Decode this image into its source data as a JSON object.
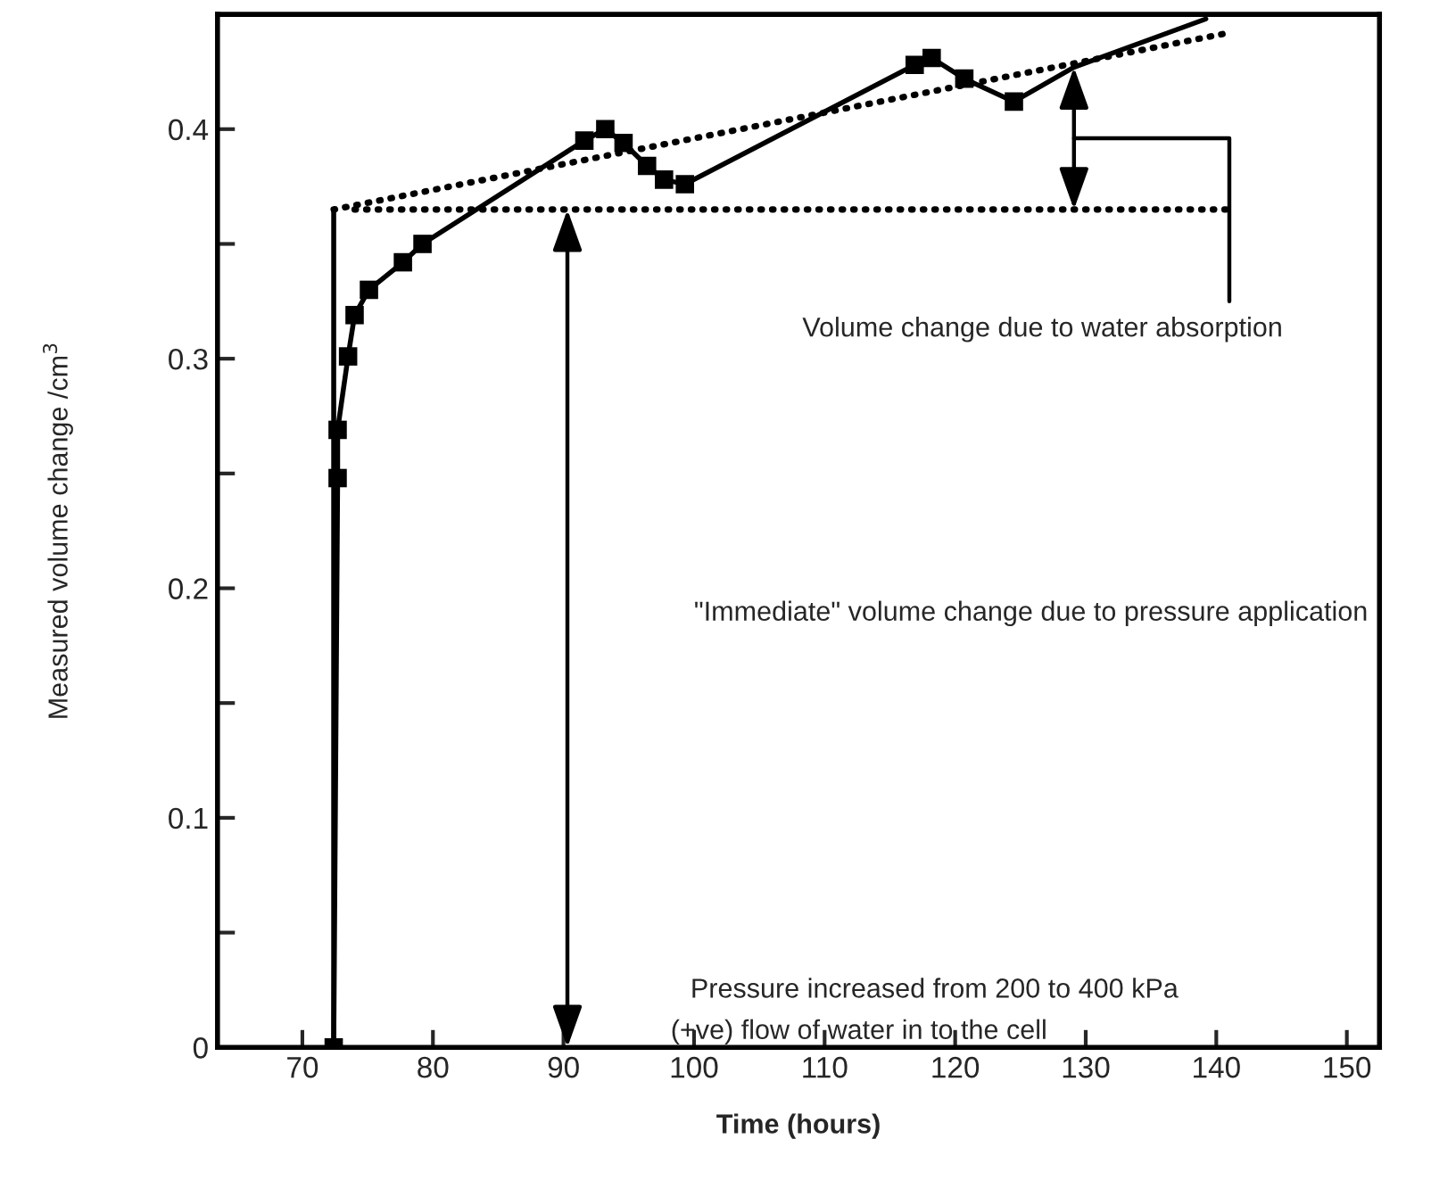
{
  "chart_data": {
    "type": "line",
    "xlabel": "Time (hours)",
    "ylabel": "Measured volume change /cm$^{3}$",
    "xlim": [
      63.5,
      152.5
    ],
    "ylim": [
      0,
      0.45
    ],
    "xticks": [
      70,
      80,
      90,
      100,
      110,
      120,
      130,
      140,
      150
    ],
    "yticks": [
      {
        "value": 0,
        "label": "0"
      },
      {
        "value": 0.05,
        "label": null
      },
      0.1,
      {
        "value": 0.15,
        "label": null
      },
      0.2,
      {
        "value": 0.25,
        "label": null
      },
      0.3,
      {
        "value": 0.35,
        "label": null
      },
      0.4
    ],
    "grid": false,
    "legend": false,
    "series": [
      {
        "color": "#000000",
        "line_style": "solid",
        "marker": "none",
        "x": [
          72.4,
          72.7,
          72.7,
          73.5,
          74.0,
          75.1,
          77.7,
          79.2,
          91.6,
          93.2,
          94.6,
          96.4,
          97.7,
          99.3,
          116.9,
          118.2,
          120.7,
          124.5,
          129.1,
          139.2
        ],
        "values": [
          0,
          0.248,
          0.269,
          0.301,
          0.319,
          0.33,
          0.342,
          0.35,
          0.395,
          0.4,
          0.394,
          0.384,
          0.378,
          0.376,
          0.428,
          0.431,
          0.422,
          0.412,
          0.427,
          0.448
        ]
      },
      {
        "type": "scatter",
        "color": "#000000",
        "marker": "square",
        "x": [
          72.4,
          72.7,
          72.7,
          73.5,
          74.0,
          75.1,
          77.7,
          79.2,
          91.6,
          93.2,
          94.6,
          96.4,
          97.7,
          99.3,
          116.9,
          118.2,
          120.7,
          124.5
        ],
        "values": [
          0,
          0.248,
          0.269,
          0.301,
          0.319,
          0.33,
          0.342,
          0.35,
          0.395,
          0.4,
          0.394,
          0.384,
          0.378,
          0.376,
          0.428,
          0.431,
          0.422,
          0.412
        ]
      },
      {
        "type": "line",
        "color": "#000000",
        "line_style": "solid",
        "marker": "none",
        "x": [
          72.4,
          72.4
        ],
        "values": [
          0,
          0.365
        ]
      },
      {
        "type": "line",
        "color": "#000000",
        "line_style": "dotted",
        "marker": "none",
        "x": [
          72.4,
          141.0
        ],
        "values": [
          0.365,
          0.442
        ]
      },
      {
        "type": "line",
        "color": "#000000",
        "line_style": "dotted",
        "marker": "none",
        "x": [
          74.0,
          141.0
        ],
        "values": [
          0.365,
          0.365
        ]
      }
    ],
    "annotations": [
      "\"Immediate\" volume change due to pressure application",
      "Volume change due to water absorption",
      "Pressure increased from 200 to 400 kPa",
      "(+ve) flow of water in to the cell"
    ]
  }
}
